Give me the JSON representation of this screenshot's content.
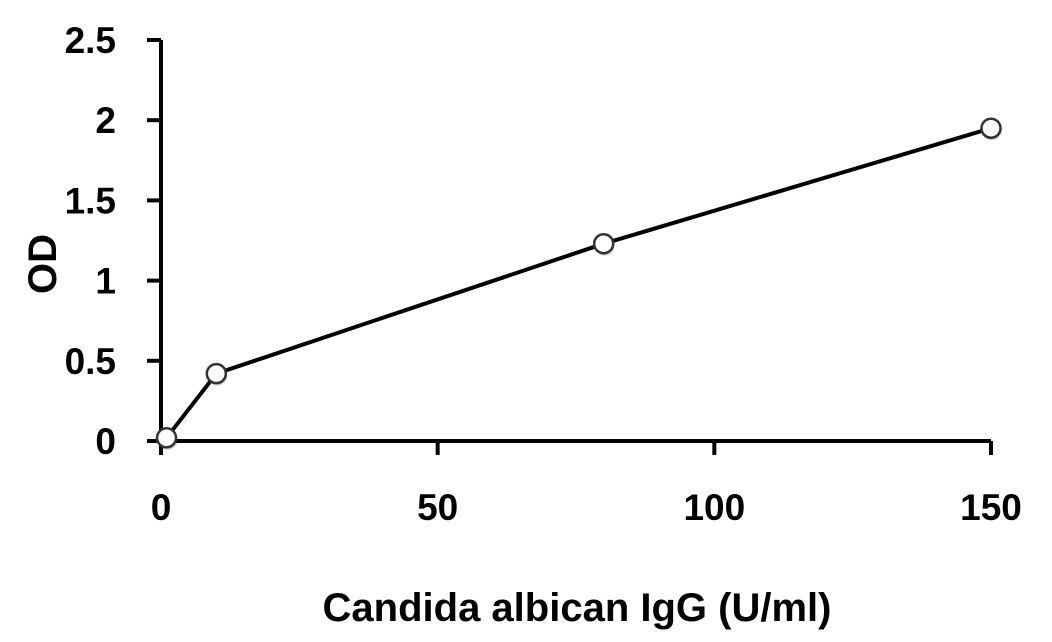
{
  "chart_data": {
    "type": "line",
    "title": "",
    "xlabel": "Candida albican IgG (U/ml)",
    "ylabel": "OD",
    "xlim": [
      0,
      150
    ],
    "ylim": [
      0,
      2.5
    ],
    "x_ticks": [
      0,
      50,
      100,
      150
    ],
    "x_tick_labels": [
      "0",
      "50",
      "100",
      "150"
    ],
    "y_ticks": [
      0,
      0.5,
      1,
      1.5,
      2,
      2.5
    ],
    "y_tick_labels": [
      "0",
      "0.5",
      "1",
      "1.5",
      "2",
      "2.5"
    ],
    "grid": false,
    "legend": null,
    "series": [
      {
        "name": "OD",
        "x": [
          1,
          10,
          80,
          150
        ],
        "values": [
          0.02,
          0.42,
          1.23,
          1.95
        ],
        "marker": "open-circle",
        "color": "#000000"
      }
    ]
  },
  "colors": {
    "line": "#000000",
    "marker_fill": "#ffffff",
    "background": "#ffffff"
  }
}
